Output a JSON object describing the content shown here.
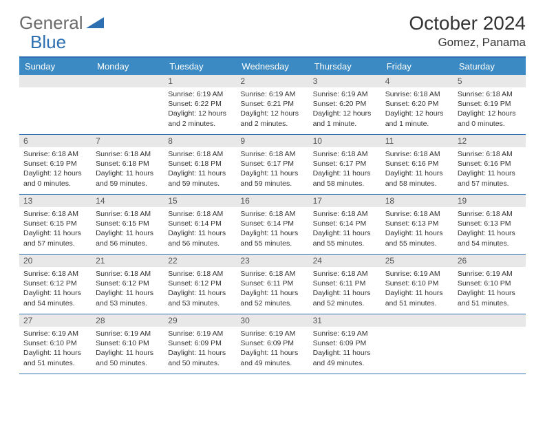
{
  "logo": {
    "general": "General",
    "blue": "Blue"
  },
  "title": "October 2024",
  "location": "Gomez, Panama",
  "dayHeaders": [
    "Sunday",
    "Monday",
    "Tuesday",
    "Wednesday",
    "Thursday",
    "Friday",
    "Saturday"
  ],
  "colors": {
    "headerBar": "#3b8ac4",
    "borderTop": "#2d6fb0",
    "dayNumBg": "#e8e8e8",
    "logoBlue": "#2d6fb0",
    "logoGray": "#6b6b6b"
  },
  "weeks": [
    [
      {
        "empty": true
      },
      {
        "empty": true
      },
      {
        "num": "1",
        "sunrise": "Sunrise: 6:19 AM",
        "sunset": "Sunset: 6:22 PM",
        "daylight": "Daylight: 12 hours and 2 minutes."
      },
      {
        "num": "2",
        "sunrise": "Sunrise: 6:19 AM",
        "sunset": "Sunset: 6:21 PM",
        "daylight": "Daylight: 12 hours and 2 minutes."
      },
      {
        "num": "3",
        "sunrise": "Sunrise: 6:19 AM",
        "sunset": "Sunset: 6:20 PM",
        "daylight": "Daylight: 12 hours and 1 minute."
      },
      {
        "num": "4",
        "sunrise": "Sunrise: 6:18 AM",
        "sunset": "Sunset: 6:20 PM",
        "daylight": "Daylight: 12 hours and 1 minute."
      },
      {
        "num": "5",
        "sunrise": "Sunrise: 6:18 AM",
        "sunset": "Sunset: 6:19 PM",
        "daylight": "Daylight: 12 hours and 0 minutes."
      }
    ],
    [
      {
        "num": "6",
        "sunrise": "Sunrise: 6:18 AM",
        "sunset": "Sunset: 6:19 PM",
        "daylight": "Daylight: 12 hours and 0 minutes."
      },
      {
        "num": "7",
        "sunrise": "Sunrise: 6:18 AM",
        "sunset": "Sunset: 6:18 PM",
        "daylight": "Daylight: 11 hours and 59 minutes."
      },
      {
        "num": "8",
        "sunrise": "Sunrise: 6:18 AM",
        "sunset": "Sunset: 6:18 PM",
        "daylight": "Daylight: 11 hours and 59 minutes."
      },
      {
        "num": "9",
        "sunrise": "Sunrise: 6:18 AM",
        "sunset": "Sunset: 6:17 PM",
        "daylight": "Daylight: 11 hours and 59 minutes."
      },
      {
        "num": "10",
        "sunrise": "Sunrise: 6:18 AM",
        "sunset": "Sunset: 6:17 PM",
        "daylight": "Daylight: 11 hours and 58 minutes."
      },
      {
        "num": "11",
        "sunrise": "Sunrise: 6:18 AM",
        "sunset": "Sunset: 6:16 PM",
        "daylight": "Daylight: 11 hours and 58 minutes."
      },
      {
        "num": "12",
        "sunrise": "Sunrise: 6:18 AM",
        "sunset": "Sunset: 6:16 PM",
        "daylight": "Daylight: 11 hours and 57 minutes."
      }
    ],
    [
      {
        "num": "13",
        "sunrise": "Sunrise: 6:18 AM",
        "sunset": "Sunset: 6:15 PM",
        "daylight": "Daylight: 11 hours and 57 minutes."
      },
      {
        "num": "14",
        "sunrise": "Sunrise: 6:18 AM",
        "sunset": "Sunset: 6:15 PM",
        "daylight": "Daylight: 11 hours and 56 minutes."
      },
      {
        "num": "15",
        "sunrise": "Sunrise: 6:18 AM",
        "sunset": "Sunset: 6:14 PM",
        "daylight": "Daylight: 11 hours and 56 minutes."
      },
      {
        "num": "16",
        "sunrise": "Sunrise: 6:18 AM",
        "sunset": "Sunset: 6:14 PM",
        "daylight": "Daylight: 11 hours and 55 minutes."
      },
      {
        "num": "17",
        "sunrise": "Sunrise: 6:18 AM",
        "sunset": "Sunset: 6:14 PM",
        "daylight": "Daylight: 11 hours and 55 minutes."
      },
      {
        "num": "18",
        "sunrise": "Sunrise: 6:18 AM",
        "sunset": "Sunset: 6:13 PM",
        "daylight": "Daylight: 11 hours and 55 minutes."
      },
      {
        "num": "19",
        "sunrise": "Sunrise: 6:18 AM",
        "sunset": "Sunset: 6:13 PM",
        "daylight": "Daylight: 11 hours and 54 minutes."
      }
    ],
    [
      {
        "num": "20",
        "sunrise": "Sunrise: 6:18 AM",
        "sunset": "Sunset: 6:12 PM",
        "daylight": "Daylight: 11 hours and 54 minutes."
      },
      {
        "num": "21",
        "sunrise": "Sunrise: 6:18 AM",
        "sunset": "Sunset: 6:12 PM",
        "daylight": "Daylight: 11 hours and 53 minutes."
      },
      {
        "num": "22",
        "sunrise": "Sunrise: 6:18 AM",
        "sunset": "Sunset: 6:12 PM",
        "daylight": "Daylight: 11 hours and 53 minutes."
      },
      {
        "num": "23",
        "sunrise": "Sunrise: 6:18 AM",
        "sunset": "Sunset: 6:11 PM",
        "daylight": "Daylight: 11 hours and 52 minutes."
      },
      {
        "num": "24",
        "sunrise": "Sunrise: 6:18 AM",
        "sunset": "Sunset: 6:11 PM",
        "daylight": "Daylight: 11 hours and 52 minutes."
      },
      {
        "num": "25",
        "sunrise": "Sunrise: 6:19 AM",
        "sunset": "Sunset: 6:10 PM",
        "daylight": "Daylight: 11 hours and 51 minutes."
      },
      {
        "num": "26",
        "sunrise": "Sunrise: 6:19 AM",
        "sunset": "Sunset: 6:10 PM",
        "daylight": "Daylight: 11 hours and 51 minutes."
      }
    ],
    [
      {
        "num": "27",
        "sunrise": "Sunrise: 6:19 AM",
        "sunset": "Sunset: 6:10 PM",
        "daylight": "Daylight: 11 hours and 51 minutes."
      },
      {
        "num": "28",
        "sunrise": "Sunrise: 6:19 AM",
        "sunset": "Sunset: 6:10 PM",
        "daylight": "Daylight: 11 hours and 50 minutes."
      },
      {
        "num": "29",
        "sunrise": "Sunrise: 6:19 AM",
        "sunset": "Sunset: 6:09 PM",
        "daylight": "Daylight: 11 hours and 50 minutes."
      },
      {
        "num": "30",
        "sunrise": "Sunrise: 6:19 AM",
        "sunset": "Sunset: 6:09 PM",
        "daylight": "Daylight: 11 hours and 49 minutes."
      },
      {
        "num": "31",
        "sunrise": "Sunrise: 6:19 AM",
        "sunset": "Sunset: 6:09 PM",
        "daylight": "Daylight: 11 hours and 49 minutes."
      },
      {
        "empty": true
      },
      {
        "empty": true
      }
    ]
  ]
}
